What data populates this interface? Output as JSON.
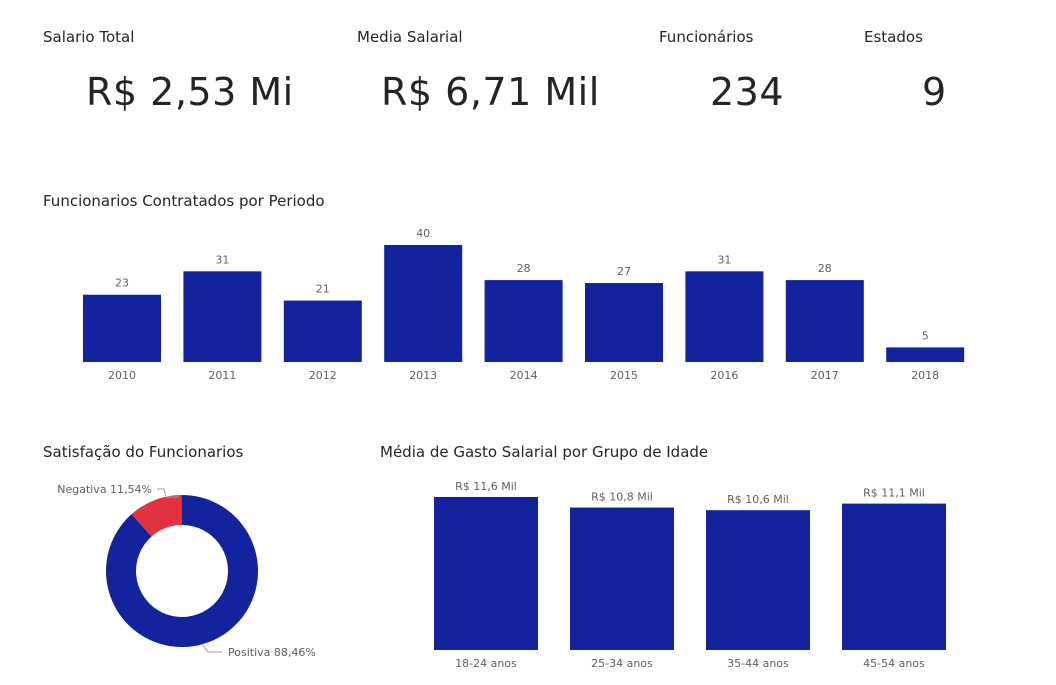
{
  "kpis": {
    "salario_total": {
      "label": "Salario Total",
      "value": "R$ 2,53 Mi"
    },
    "media_salarial": {
      "label": "Media Salarial",
      "value": "R$ 6,71 Mil"
    },
    "funcionarios": {
      "label": "Funcionários",
      "value": "234"
    },
    "estados": {
      "label": "Estados",
      "value": "9"
    }
  },
  "colors": {
    "bar": "#13239e",
    "negative": "#e3323f",
    "label_text": "#605e5c"
  },
  "chart_data": [
    {
      "type": "bar",
      "title": "Funcionarios Contratados por Periodo",
      "categories": [
        "2010",
        "2011",
        "2012",
        "2013",
        "2014",
        "2015",
        "2016",
        "2017",
        "2018"
      ],
      "values": [
        23,
        31,
        21,
        40,
        28,
        27,
        31,
        28,
        5
      ],
      "data_labels": [
        "23",
        "31",
        "21",
        "40",
        "28",
        "27",
        "31",
        "28",
        "5"
      ],
      "ylim": [
        0,
        40
      ],
      "grid": false
    },
    {
      "type": "pie",
      "title": "Satisfação do Funcionarios",
      "categories": [
        "Negativa",
        "Positiva"
      ],
      "values": [
        11.54,
        88.46
      ],
      "data_labels": [
        "Negativa 11,54%",
        "Positiva 88,46%"
      ]
    },
    {
      "type": "bar",
      "title": "Média de Gasto Salarial por Grupo de Idade",
      "categories": [
        "18-24 anos",
        "25-34 anos",
        "35-44 anos",
        "45-54 anos"
      ],
      "values": [
        11.6,
        10.8,
        10.6,
        11.1
      ],
      "data_labels": [
        "R$ 11,6 Mil",
        "R$ 10,8 Mil",
        "R$ 10,6 Mil",
        "R$ 11,1 Mil"
      ],
      "ylim": [
        0,
        11.6
      ],
      "grid": false
    }
  ]
}
